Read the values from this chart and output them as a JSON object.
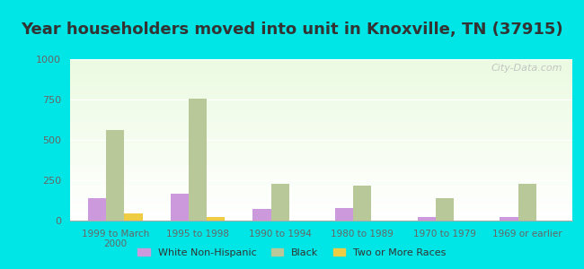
{
  "title": "Year householders moved into unit in Knoxville, TN (37915)",
  "categories": [
    "1999 to March\n2000",
    "1995 to 1998",
    "1990 to 1994",
    "1980 to 1989",
    "1970 to 1979",
    "1969 or earlier"
  ],
  "series": {
    "White Non-Hispanic": [
      140,
      165,
      75,
      80,
      20,
      20
    ],
    "Black": [
      560,
      755,
      230,
      215,
      140,
      230
    ],
    "Two or More Races": [
      45,
      20,
      0,
      0,
      0,
      0
    ]
  },
  "colors": {
    "White Non-Hispanic": "#cc99dd",
    "Black": "#b8c898",
    "Two or More Races": "#eecc44"
  },
  "ylim": [
    0,
    1000
  ],
  "yticks": [
    0,
    250,
    500,
    750,
    1000
  ],
  "background_color": "#00e5e5",
  "watermark": "City-Data.com",
  "legend_items": [
    "White Non-Hispanic",
    "Black",
    "Two or More Races"
  ],
  "bar_width": 0.22,
  "title_fontsize": 13
}
